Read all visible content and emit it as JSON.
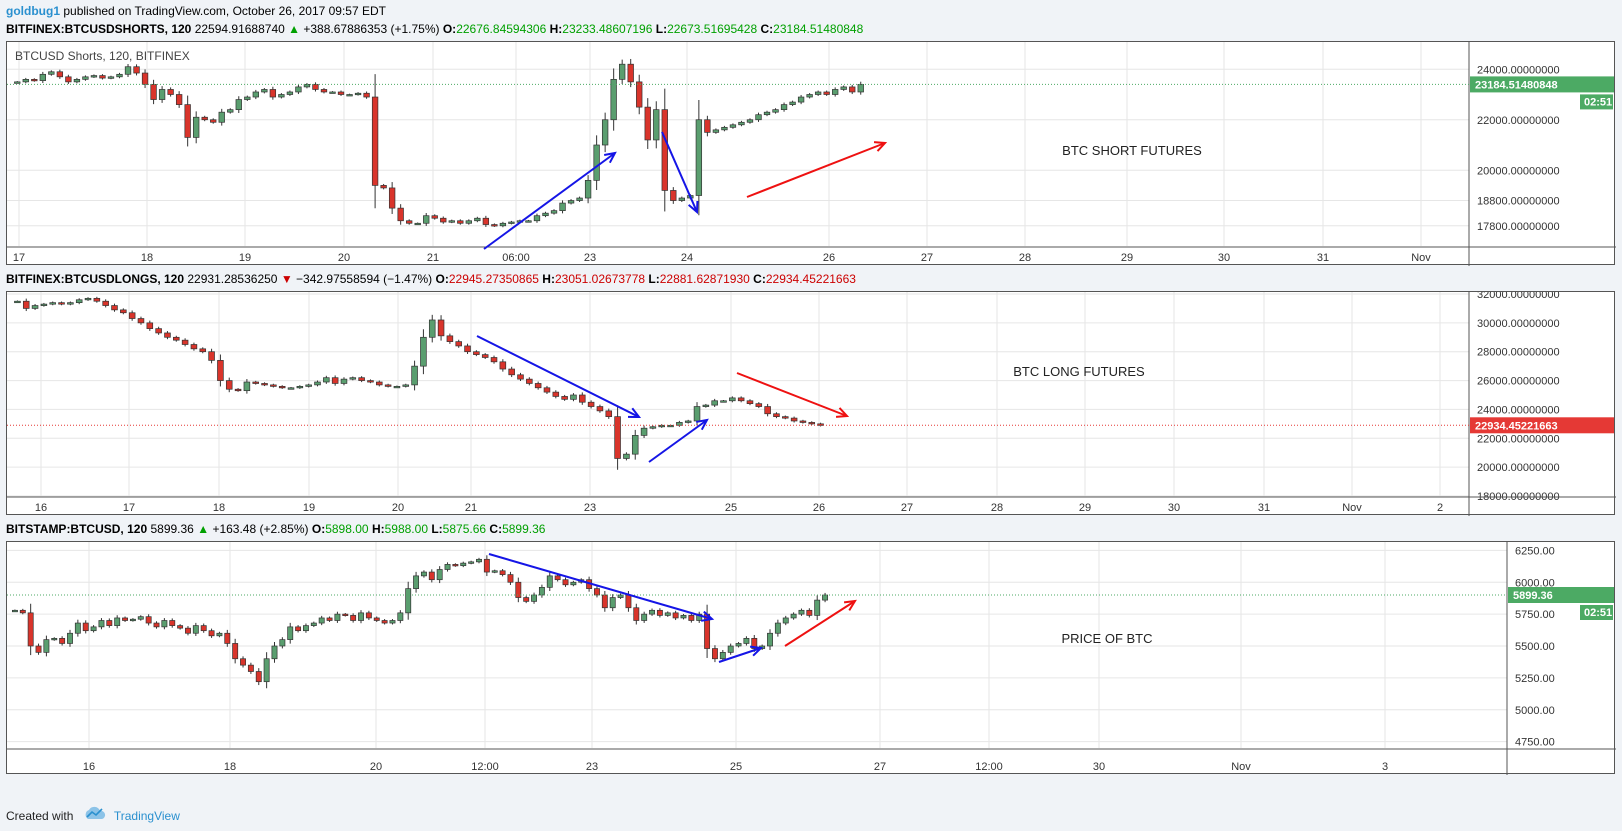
{
  "header": {
    "author": "goldbug1",
    "published_text": "published on TradingView.com, October 26, 2017 09:57 EDT"
  },
  "footer": {
    "created_with": "Created with",
    "brand": "TradingView"
  },
  "colors": {
    "up": "#5a9e6f",
    "down": "#d9342b",
    "arrow_blue": "#1515e6",
    "arrow_red": "#ee1111",
    "price_tag_green": "#4caa64",
    "price_tag_red": "#e53935"
  },
  "charts": [
    {
      "symbol": "BITFINEX:BTCUSDSHORTS, 120",
      "last": "22594.91688740",
      "change_icon": "up-triangle",
      "change": "+388.67886353 (+1.75%)",
      "o": "22676.84594306",
      "h": "23233.48607196",
      "l": "22673.51695428",
      "c": "23184.51480848",
      "legend": "BTCUSD Shorts, 120, BITFINEX",
      "annotation": "BTC SHORT FUTURES",
      "price_label": "23184.51480848",
      "countdown": "02:51"
    },
    {
      "symbol": "BITFINEX:BTCUSDLONGS, 120",
      "last": "22931.28536250",
      "change_icon": "down-triangle",
      "change": "−342.97558594 (−1.47%)",
      "o": "22945.27350865",
      "h": "23051.02673778",
      "l": "22881.62871930",
      "c": "22934.45221663",
      "annotation": "BTC LONG FUTURES",
      "price_label": "22934.45221663"
    },
    {
      "symbol": "BITSTAMP:BTCUSD, 120",
      "last": "5899.36",
      "change_icon": "up-triangle",
      "change": "+163.48 (+2.85%)",
      "o": "5898.00",
      "h": "5988.00",
      "l": "5875.66",
      "c": "5899.36",
      "annotation": "PRICE OF BTC",
      "price_label": "5899.36",
      "countdown": "02:51"
    }
  ],
  "chart_data": [
    {
      "type": "candlestick",
      "title": "BITFINEX:BTCUSDSHORTS, 120",
      "ylim": [
        17000,
        25000
      ],
      "y_ticks": [
        "17800.00000000",
        "18800.00000000",
        "20000.00000000",
        "22000.00000000",
        "24000.00000000"
      ],
      "y_tick_values": [
        17800,
        18800,
        20000,
        22000,
        24000
      ],
      "x_ticks": [
        "17",
        "18",
        "19",
        "20",
        "21",
        "06:00",
        "23",
        "24",
        "26",
        "27",
        "28",
        "29",
        "30",
        "31",
        "Nov"
      ],
      "grid": true,
      "closes": [
        23500,
        23600,
        23550,
        23800,
        23900,
        23700,
        23500,
        23600,
        23700,
        23750,
        23650,
        23700,
        23800,
        24100,
        23850,
        23400,
        22800,
        23200,
        23000,
        22600,
        21300,
        22100,
        22000,
        21900,
        22300,
        22400,
        22800,
        22900,
        23100,
        23200,
        22900,
        23000,
        23100,
        23300,
        23400,
        23200,
        23100,
        23100,
        23000,
        23000,
        23050,
        22900,
        19400,
        19300,
        18500,
        18000,
        17900,
        17900,
        18200,
        18100,
        17950,
        18000,
        17900,
        18000,
        18100,
        17850,
        17800,
        17900,
        17950,
        18000,
        18000,
        18200,
        18300,
        18400,
        18700,
        18800,
        18900,
        19600,
        21000,
        22000,
        23600,
        24200,
        23500,
        22500,
        21200,
        22400,
        19200,
        18800,
        18900,
        19000,
        22000,
        21500,
        21600,
        21700,
        21800,
        21900,
        22000,
        22200,
        22300,
        22400,
        22600,
        22700,
        22900,
        23000,
        23100,
        23000,
        23200,
        23300,
        23100,
        23400
      ]
    },
    {
      "type": "candlestick",
      "title": "BITFINEX:BTCUSDLONGS, 120",
      "ylim": [
        18000,
        32000
      ],
      "y_ticks": [
        "18000.00000000",
        "20000.00000000",
        "22000.00000000",
        "24000.00000000",
        "26000.00000000",
        "28000.00000000",
        "30000.00000000",
        "32000.00000000"
      ],
      "y_tick_values": [
        18000,
        20000,
        22000,
        24000,
        26000,
        28000,
        30000,
        32000
      ],
      "x_ticks": [
        "16",
        "17",
        "18",
        "19",
        "20",
        "21",
        "23",
        "25",
        "26",
        "27",
        "28",
        "29",
        "30",
        "31",
        "Nov",
        "2"
      ],
      "grid": true,
      "closes": [
        31500,
        31000,
        31200,
        31300,
        31400,
        31300,
        31400,
        31600,
        31700,
        31500,
        31200,
        30900,
        30700,
        30300,
        30000,
        29600,
        29300,
        29000,
        28800,
        28500,
        28200,
        28000,
        27400,
        26000,
        25400,
        25300,
        25900,
        25800,
        25700,
        25600,
        25500,
        25500,
        25600,
        25700,
        25900,
        26200,
        25800,
        26100,
        26200,
        26000,
        25900,
        25700,
        25600,
        25600,
        25700,
        27000,
        29000,
        30200,
        29100,
        28700,
        28400,
        28000,
        27800,
        27600,
        27300,
        26800,
        26400,
        26100,
        25800,
        25500,
        25200,
        24900,
        24700,
        25000,
        24500,
        24200,
        23900,
        23500,
        20600,
        20900,
        22200,
        22700,
        22800,
        22900,
        22900,
        23100,
        23200,
        24200,
        24300,
        24600,
        24600,
        24800,
        24600,
        24400,
        24200,
        23700,
        23500,
        23400,
        23200,
        23100,
        23000,
        22900
      ]
    },
    {
      "type": "candlestick",
      "title": "BITSTAMP:BTCUSD, 120",
      "ylim": [
        4700,
        6300
      ],
      "y_ticks": [
        "4750.00",
        "5000.00",
        "5250.00",
        "5500.00",
        "5750.00",
        "6000.00",
        "6250.00"
      ],
      "y_tick_values": [
        4750,
        5000,
        5250,
        5500,
        5750,
        6000,
        6250
      ],
      "x_ticks": [
        "16",
        "18",
        "20",
        "12:00",
        "23",
        "25",
        "27",
        "12:00",
        "30",
        "Nov",
        "3"
      ],
      "grid": true,
      "closes": [
        5780,
        5760,
        5500,
        5450,
        5550,
        5560,
        5520,
        5600,
        5680,
        5620,
        5650,
        5700,
        5660,
        5720,
        5700,
        5710,
        5730,
        5680,
        5650,
        5700,
        5660,
        5640,
        5600,
        5660,
        5620,
        5580,
        5600,
        5520,
        5400,
        5350,
        5300,
        5220,
        5400,
        5500,
        5550,
        5650,
        5620,
        5660,
        5680,
        5720,
        5700,
        5750,
        5740,
        5700,
        5760,
        5720,
        5700,
        5680,
        5700,
        5760,
        5950,
        6050,
        6080,
        6020,
        6100,
        6140,
        6130,
        6150,
        6160,
        6180,
        6080,
        6090,
        6060,
        6000,
        5880,
        5850,
        5900,
        5960,
        6050,
        6020,
        5980,
        6000,
        6020,
        5950,
        5900,
        5800,
        5880,
        5900,
        5800,
        5700,
        5750,
        5780,
        5740,
        5760,
        5720,
        5740,
        5700,
        5750,
        5480,
        5400,
        5450,
        5500,
        5520,
        5560,
        5480,
        5500,
        5600,
        5680,
        5720,
        5750,
        5780,
        5740,
        5860,
        5900
      ]
    }
  ]
}
